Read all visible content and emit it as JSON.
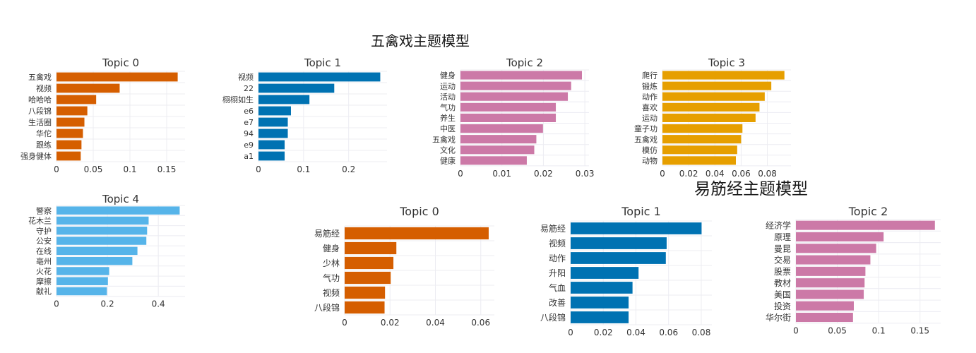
{
  "titles": {
    "wuqinxi": "五禽戏主题模型",
    "yijinjing": "易筋经主题模型"
  },
  "colors": {
    "topic0": "#d55e00",
    "topic1": "#0072b2",
    "topic2": "#cc79a7",
    "topic3": "#e69f00",
    "topic4": "#56b4e9",
    "grid": "#ececf2",
    "text": "#333333"
  },
  "chart_data": [
    {
      "type": "bar",
      "orientation": "horizontal",
      "group": "五禽戏主题模型",
      "title": "Topic 0",
      "color": "topic0",
      "categories": [
        "五禽戏",
        "视频",
        "哈哈哈",
        "八段锦",
        "生活圈",
        "华佗",
        "跟练",
        "强身健体"
      ],
      "values": [
        0.165,
        0.086,
        0.054,
        0.042,
        0.038,
        0.036,
        0.034,
        0.033
      ],
      "xlim": [
        0,
        0.175
      ],
      "xticks": [
        0,
        0.05,
        0.1,
        0.15
      ],
      "xticklabels": [
        "0",
        "0.05",
        "0.1",
        "0.15"
      ]
    },
    {
      "type": "bar",
      "orientation": "horizontal",
      "group": "五禽戏主题模型",
      "title": "Topic 1",
      "color": "topic1",
      "categories": [
        "视频",
        "22",
        "栩栩如生",
        "e6",
        "e7",
        "94",
        "e9",
        "a1"
      ],
      "values": [
        0.27,
        0.168,
        0.113,
        0.072,
        0.065,
        0.065,
        0.058,
        0.058
      ],
      "xlim": [
        0,
        0.285
      ],
      "xticks": [
        0,
        0.1,
        0.2
      ],
      "xticklabels": [
        "0",
        "0.1",
        "0.2"
      ]
    },
    {
      "type": "bar",
      "orientation": "horizontal",
      "group": "五禽戏主题模型",
      "title": "Topic 2",
      "color": "topic2",
      "categories": [
        "健身",
        "运动",
        "活动",
        "气功",
        "养生",
        "中医",
        "五禽戏",
        "文化",
        "健康"
      ],
      "values": [
        0.0293,
        0.0267,
        0.0259,
        0.023,
        0.023,
        0.0199,
        0.0183,
        0.0178,
        0.016
      ],
      "xlim": [
        0,
        0.031
      ],
      "xticks": [
        0,
        0.01,
        0.02,
        0.03
      ],
      "xticklabels": [
        "0",
        "0.01",
        "0.02",
        "0.03"
      ]
    },
    {
      "type": "bar",
      "orientation": "horizontal",
      "group": "五禽戏主题模型",
      "title": "Topic 3",
      "color": "topic3",
      "categories": [
        "爬行",
        "锻炼",
        "动作",
        "喜欢",
        "运动",
        "童子功",
        "五禽戏",
        "模仿",
        "动物"
      ],
      "values": [
        0.093,
        0.083,
        0.078,
        0.074,
        0.071,
        0.061,
        0.06,
        0.057,
        0.056
      ],
      "xlim": [
        0,
        0.098
      ],
      "xticks": [
        0,
        0.02,
        0.04,
        0.06,
        0.08
      ],
      "xticklabels": [
        "0",
        "0.02",
        "0.04",
        "0.06",
        "0.08"
      ]
    },
    {
      "type": "bar",
      "orientation": "horizontal",
      "group": "五禽戏主题模型",
      "title": "Topic 4",
      "color": "topic4",
      "categories": [
        "警察",
        "花木兰",
        "守护",
        "公安",
        "在线",
        "亳州",
        "火花",
        "摩擦",
        "献礼"
      ],
      "values": [
        0.484,
        0.362,
        0.356,
        0.353,
        0.318,
        0.298,
        0.207,
        0.202,
        0.198
      ],
      "xlim": [
        0,
        0.505
      ],
      "xticks": [
        0,
        0.2,
        0.4
      ],
      "xticklabels": [
        "0",
        "0.2",
        "0.4"
      ]
    },
    {
      "type": "bar",
      "orientation": "horizontal",
      "group": "易筋经主题模型",
      "title": "Topic 0",
      "color": "topic0",
      "categories": [
        "易筋经",
        "健身",
        "少林",
        "气功",
        "视频",
        "八段锦"
      ],
      "values": [
        0.0635,
        0.0228,
        0.0215,
        0.0203,
        0.0178,
        0.0176
      ],
      "xlim": [
        0,
        0.066
      ],
      "xticks": [
        0,
        0.02,
        0.04,
        0.06
      ],
      "xticklabels": [
        "0",
        "0.02",
        "0.04",
        "0.06"
      ]
    },
    {
      "type": "bar",
      "orientation": "horizontal",
      "group": "易筋经主题模型",
      "title": "Topic 1",
      "color": "topic1",
      "categories": [
        "易筋经",
        "视频",
        "动作",
        "升阳",
        "气血",
        "改善",
        "八段锦"
      ],
      "values": [
        0.0802,
        0.0588,
        0.0583,
        0.0416,
        0.0379,
        0.0355,
        0.0355
      ],
      "xlim": [
        0,
        0.0865
      ],
      "xticks": [
        0,
        0.02,
        0.04,
        0.06,
        0.08
      ],
      "xticklabels": [
        "0",
        "0.02",
        "0.04",
        "0.06",
        "0.08"
      ]
    },
    {
      "type": "bar",
      "orientation": "horizontal",
      "group": "易筋经主题模型",
      "title": "Topic 2",
      "color": "topic2",
      "categories": [
        "经济学",
        "原理",
        "曼昆",
        "交易",
        "股票",
        "教材",
        "美国",
        "投资",
        "华尔街"
      ],
      "values": [
        0.168,
        0.106,
        0.097,
        0.09,
        0.084,
        0.083,
        0.082,
        0.07,
        0.069
      ],
      "xlim": [
        0,
        0.175
      ],
      "xticks": [
        0,
        0.05,
        0.1,
        0.15
      ],
      "xticklabels": [
        "0",
        "0.05",
        "0.1",
        "0.15"
      ]
    }
  ]
}
